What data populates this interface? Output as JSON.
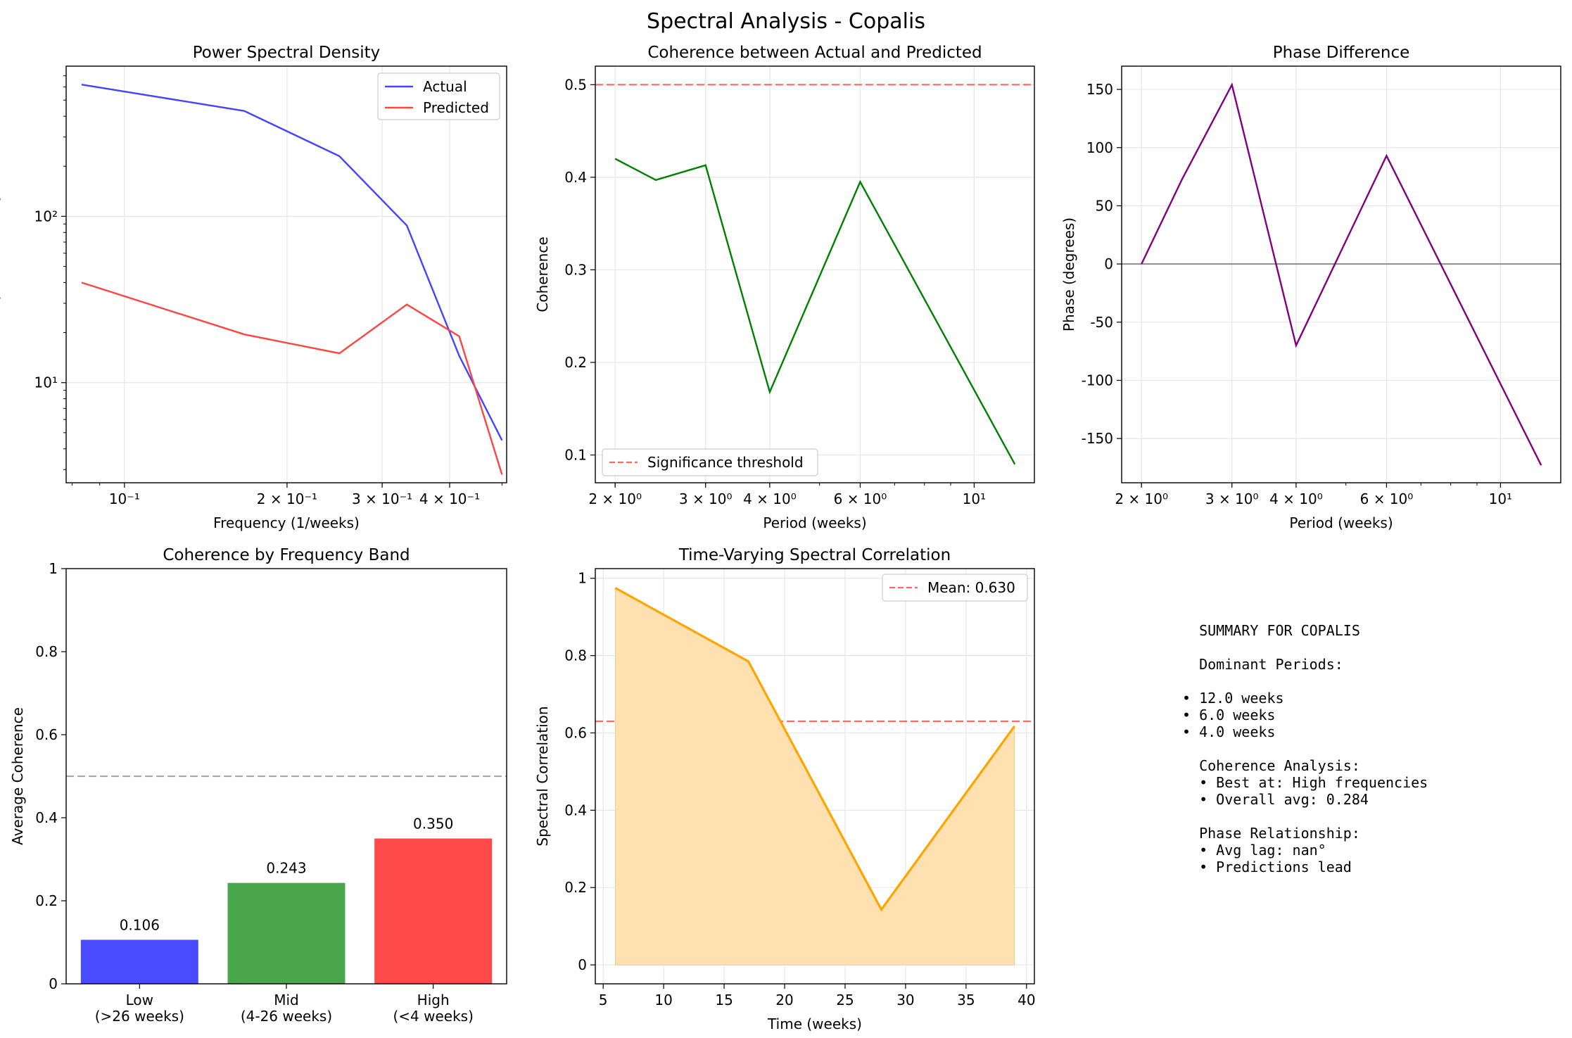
{
  "figure_title": "Spectral Analysis - Copalis",
  "chart_data": [
    {
      "type": "line",
      "title": "Power Spectral Density",
      "xlabel": "Frequency (1/weeks)",
      "ylabel": "Power Spectral Density",
      "xscale": "log",
      "yscale": "log",
      "xlim": [
        0.078,
        0.51
      ],
      "ylim": [
        2.5,
        800
      ],
      "xticks": [
        {
          "value": 0.1,
          "label": "10⁻¹"
        },
        {
          "value": 0.2,
          "label": "2 × 10⁻¹"
        },
        {
          "value": 0.3,
          "label": "3 × 10⁻¹"
        },
        {
          "value": 0.4,
          "label": "4 × 10⁻¹"
        }
      ],
      "yticks": [
        {
          "value": 10,
          "label": "10¹"
        },
        {
          "value": 100,
          "label": "10²"
        }
      ],
      "grid": true,
      "legend": "top-right",
      "series": [
        {
          "name": "Actual",
          "color": "#4444ff",
          "x": [
            0.0833,
            0.1667,
            0.25,
            0.3333,
            0.4167,
            0.5
          ],
          "y": [
            620,
            430,
            230,
            88,
            14.5,
            4.5
          ]
        },
        {
          "name": "Predicted",
          "color": "#ff4444",
          "x": [
            0.0833,
            0.1667,
            0.25,
            0.3333,
            0.4167,
            0.5
          ],
          "y": [
            40,
            19.5,
            15,
            29.5,
            19,
            2.8
          ]
        }
      ]
    },
    {
      "type": "line",
      "title": "Coherence between Actual and Predicted",
      "xlabel": "Period (weeks)",
      "ylabel": "Coherence",
      "xscale": "log",
      "xlim": [
        1.83,
        13.1
      ],
      "ylim": [
        0.07,
        0.52
      ],
      "xticks": [
        {
          "value": 2,
          "label": "2 × 10⁰"
        },
        {
          "value": 3,
          "label": "3 × 10⁰"
        },
        {
          "value": 4,
          "label": "4 × 10⁰"
        },
        {
          "value": 6,
          "label": "6 × 10⁰"
        },
        {
          "value": 10,
          "label": "10¹"
        }
      ],
      "yticks": [
        0.1,
        0.2,
        0.3,
        0.4,
        0.5
      ],
      "grid": true,
      "legend": "bottom-left",
      "reference_line": {
        "y": 0.5,
        "name": "Significance threshold",
        "color": "#ff6666"
      },
      "series": [
        {
          "color": "#008000",
          "x": [
            2,
            2.4,
            3,
            4,
            6,
            12
          ],
          "y": [
            0.42,
            0.397,
            0.413,
            0.168,
            0.395,
            0.09
          ]
        }
      ]
    },
    {
      "type": "line",
      "title": "Phase Difference",
      "xlabel": "Period (weeks)",
      "ylabel": "Phase (degrees)",
      "xscale": "log",
      "xlim": [
        1.83,
        13.1
      ],
      "ylim": [
        -188,
        170
      ],
      "xticks": [
        {
          "value": 2,
          "label": "2 × 10⁰"
        },
        {
          "value": 3,
          "label": "3 × 10⁰"
        },
        {
          "value": 4,
          "label": "4 × 10⁰"
        },
        {
          "value": 6,
          "label": "6 × 10⁰"
        },
        {
          "value": 10,
          "label": "10¹"
        }
      ],
      "yticks": [
        -150,
        -100,
        -50,
        0,
        50,
        100,
        150
      ],
      "grid": true,
      "zero_line": true,
      "series": [
        {
          "color": "#800080",
          "x": [
            2,
            2.4,
            3,
            4,
            6,
            12
          ],
          "y": [
            0,
            73,
            154,
            -70,
            93,
            -173
          ]
        }
      ]
    },
    {
      "type": "bar",
      "title": "Coherence by Frequency Band",
      "ylabel": "Average Coherence",
      "ylim": [
        0,
        1.0
      ],
      "yticks": [
        0.0,
        0.2,
        0.4,
        0.6,
        0.8,
        1.0
      ],
      "categories": [
        [
          "Low",
          "(>26 weeks)"
        ],
        [
          "Mid",
          "(4-26 weeks)"
        ],
        [
          "High",
          "(<4 weeks)"
        ]
      ],
      "values": [
        0.106,
        0.243,
        0.35
      ],
      "value_labels": [
        "0.106",
        "0.243",
        "0.350"
      ],
      "colors": [
        "#4a4aff",
        "#4aa64a",
        "#ff4a4a"
      ],
      "reference_line": {
        "y": 0.5,
        "color": "#aaaaaa"
      }
    },
    {
      "type": "area",
      "title": "Time-Varying Spectral Correlation",
      "xlabel": "Time (weeks)",
      "ylabel": "Spectral Correlation",
      "xlim": [
        4.35,
        40.65
      ],
      "ylim": [
        -0.049,
        1.025
      ],
      "xticks": [
        5,
        10,
        15,
        20,
        25,
        30,
        35,
        40
      ],
      "yticks": [
        0.0,
        0.2,
        0.4,
        0.6,
        0.8,
        1.0
      ],
      "grid": true,
      "legend": "top-right",
      "reference_line": {
        "y": 0.63,
        "name": "Mean: 0.630",
        "color": "#ff6666"
      },
      "series": [
        {
          "color": "#ffa500",
          "fill": "#ffe0b0",
          "x": [
            6,
            17,
            28,
            39
          ],
          "y": [
            0.975,
            0.785,
            0.143,
            0.617
          ]
        }
      ]
    }
  ],
  "summary": {
    "lines": [
      "  SUMMARY FOR COPALIS",
      "",
      "  Dominant Periods:",
      "",
      "• 12.0 weeks",
      "• 6.0 weeks",
      "• 4.0 weeks",
      "",
      "  Coherence Analysis:",
      "  • Best at: High frequencies",
      "  • Overall avg: 0.284",
      "",
      "  Phase Relationship:",
      "  • Avg lag: nan°",
      "  • Predictions lead"
    ]
  }
}
